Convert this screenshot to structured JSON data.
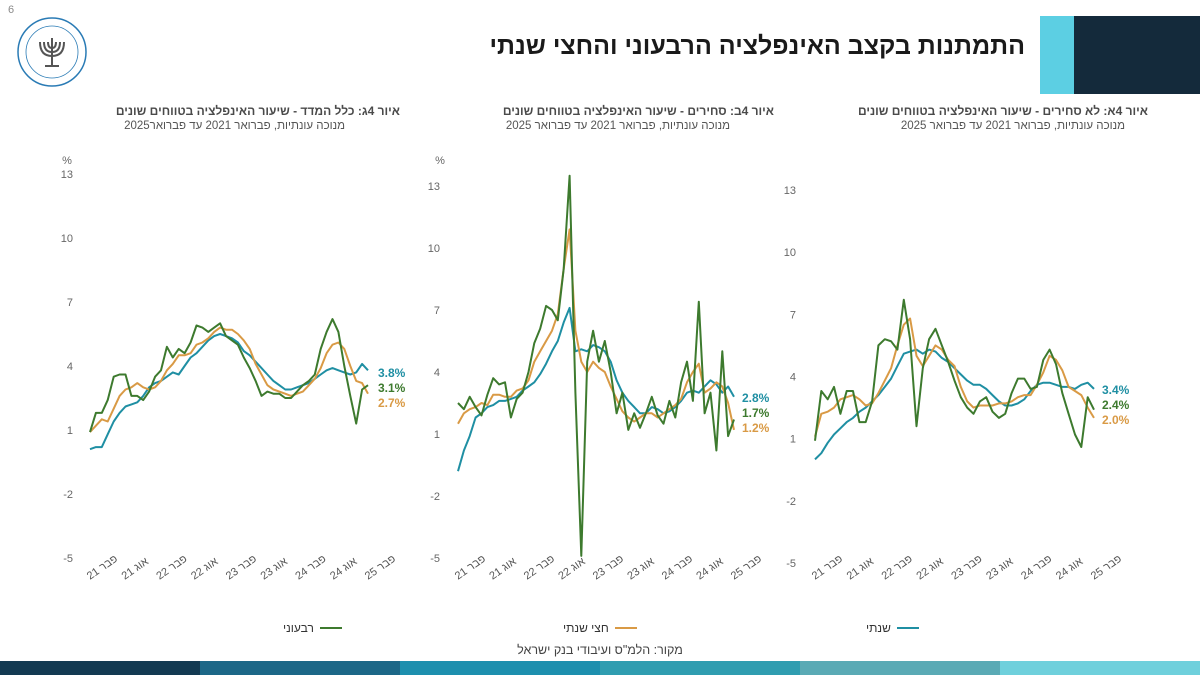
{
  "page_number": "6",
  "title": "התמתנות בקצב האינפלציה הרבעוני והחצי שנתי",
  "source": "מקור: הלמ\"ס ועיבודי בנק ישראל",
  "colors": {
    "quarterly": "#3d7a2e",
    "half_year": "#d99a45",
    "annual": "#1f8fa3",
    "header_light": "#5ccfe3",
    "header_dark": "#142a3b"
  },
  "bottom_bar_colors": [
    "#133a52",
    "#1c6787",
    "#1d8fae",
    "#2f9db0",
    "#5aaab5",
    "#6fd0dc"
  ],
  "legend": {
    "quarterly": "רבעוני",
    "half_year": "חצי שנתי",
    "annual": "שנתי"
  },
  "chart_data": [
    {
      "type": "line",
      "title": "איור 4ג: כלל המדד - שיעור האינפלציה בטווחים שונים",
      "subtitle": "מנוכה עונתיות, פברואר 2021 עד פברואר2025",
      "ylabel": "%",
      "y_ticks": [
        "13",
        "10",
        "7",
        "4",
        "1",
        "-2",
        "-5"
      ],
      "ylim": [
        -5,
        13
      ],
      "x_ticks": [
        "פבר 21",
        "אוג 21",
        "פבר 22",
        "אוג 22",
        "פבר 23",
        "אוג 23",
        "פבר 24",
        "אוג 24",
        "פבר 25"
      ],
      "end_labels": {
        "annual": "3.8%",
        "quarterly": "3.1%",
        "half_year": "2.7%"
      },
      "series": [
        {
          "key": "quarterly",
          "name": "רבעוני",
          "values": [
            0.9,
            1.8,
            1.8,
            2.4,
            3.5,
            3.6,
            3.6,
            2.6,
            2.6,
            2.4,
            2.8,
            3.5,
            3.8,
            4.9,
            4.4,
            4.8,
            4.6,
            5.1,
            5.9,
            5.8,
            5.6,
            5.8,
            6.0,
            5.4,
            5.2,
            5.0,
            4.4,
            3.9,
            3.3,
            2.6,
            2.8,
            2.7,
            2.7,
            2.5,
            2.5,
            2.8,
            3.1,
            3.3,
            3.6,
            4.8,
            5.6,
            6.2,
            5.6,
            4.0,
            2.6,
            1.3,
            2.9,
            3.1
          ]
        },
        {
          "key": "half_year",
          "name": "חצי שנתי",
          "values": [
            0.9,
            1.2,
            1.5,
            1.4,
            2.0,
            2.6,
            2.9,
            3.0,
            3.2,
            3.0,
            2.9,
            3.0,
            3.3,
            3.8,
            4.1,
            4.5,
            4.5,
            4.6,
            5.0,
            5.1,
            5.3,
            5.6,
            5.8,
            5.7,
            5.7,
            5.5,
            5.2,
            4.8,
            4.1,
            3.6,
            3.1,
            2.9,
            2.8,
            2.7,
            2.6,
            2.7,
            2.8,
            3.1,
            3.4,
            3.9,
            4.6,
            5.0,
            5.1,
            4.8,
            4.0,
            3.3,
            3.2,
            2.7
          ]
        },
        {
          "key": "annual",
          "name": "שנתי",
          "values": [
            0.1,
            0.2,
            0.2,
            0.8,
            1.4,
            1.8,
            2.1,
            2.2,
            2.3,
            2.6,
            3.0,
            3.2,
            3.3,
            3.5,
            3.7,
            3.6,
            4.0,
            4.4,
            4.6,
            4.9,
            5.2,
            5.4,
            5.5,
            5.4,
            5.3,
            5.1,
            4.7,
            4.5,
            4.2,
            3.9,
            3.6,
            3.3,
            3.1,
            2.9,
            2.9,
            3.0,
            3.1,
            3.2,
            3.4,
            3.6,
            3.8,
            3.9,
            3.8,
            3.7,
            3.6,
            3.7,
            4.1,
            3.8
          ]
        }
      ]
    },
    {
      "type": "line",
      "title": "איור 4ב: סחירים - שיעור האינפלציה בטווחים שונים",
      "subtitle": "מנוכה עונתיות, פברואר 2021 עד פברואר 2025",
      "ylabel": "%",
      "y_ticks": [
        "13",
        "10",
        "7",
        "4",
        "1",
        "-2",
        "-5"
      ],
      "ylim": [
        -5,
        13
      ],
      "x_ticks": [
        "פבר 21",
        "אוג 21",
        "פבר 22",
        "אוג 22",
        "פבר 23",
        "אוג 23",
        "פבר 24",
        "אוג 24",
        "פבר 25"
      ],
      "end_labels": {
        "annual": "2.8%",
        "quarterly": "1.7%",
        "half_year": "1.2%"
      },
      "series": [
        {
          "key": "quarterly",
          "name": "רבעוני",
          "values": [
            2.5,
            2.2,
            2.8,
            2.3,
            1.9,
            2.9,
            3.7,
            3.4,
            3.5,
            1.8,
            2.7,
            3.0,
            4.0,
            5.4,
            6.1,
            7.2,
            7.0,
            6.5,
            9.0,
            13.5,
            3.0,
            -4.9,
            4.5,
            6.0,
            4.5,
            5.5,
            4.0,
            2.0,
            3.0,
            1.2,
            2.0,
            1.3,
            2.0,
            2.8,
            1.9,
            1.5,
            2.6,
            1.8,
            3.5,
            4.5,
            2.6,
            7.4,
            2.0,
            3.0,
            0.2,
            5.0,
            0.9,
            1.7
          ]
        },
        {
          "key": "half_year",
          "name": "חצי שנתי",
          "values": [
            1.5,
            2.0,
            2.2,
            2.3,
            2.5,
            2.4,
            2.9,
            2.9,
            2.8,
            2.8,
            3.1,
            3.2,
            3.6,
            4.5,
            5.0,
            5.5,
            6.0,
            6.8,
            9.0,
            10.9,
            6.0,
            4.5,
            4.0,
            4.5,
            4.2,
            4.0,
            3.3,
            2.7,
            2.1,
            1.8,
            1.6,
            1.8,
            2.0,
            2.0,
            1.8,
            2.0,
            2.2,
            2.4,
            2.7,
            3.5,
            4.0,
            4.4,
            3.0,
            3.2,
            3.5,
            3.3,
            2.5,
            1.2
          ]
        },
        {
          "key": "annual",
          "name": "שנתי",
          "values": [
            -0.8,
            0.2,
            0.9,
            1.8,
            2.0,
            2.3,
            2.4,
            2.6,
            2.6,
            2.7,
            2.8,
            3.1,
            3.3,
            3.5,
            3.9,
            4.4,
            5.0,
            5.5,
            6.4,
            7.1,
            5.0,
            5.1,
            5.0,
            5.3,
            5.2,
            5.0,
            4.5,
            3.6,
            3.0,
            2.6,
            2.3,
            2.0,
            2.0,
            2.3,
            2.2,
            2.0,
            2.1,
            2.3,
            2.6,
            3.0,
            3.1,
            3.0,
            3.3,
            3.6,
            3.4,
            3.0,
            3.3,
            2.8
          ]
        }
      ]
    },
    {
      "type": "line",
      "title": "איור 4א: לא סחירים - שיעור האינפלציה בטווחים שונים",
      "subtitle": "מנוכה עונתיות, פברואר 2021 עד פברואר 2025",
      "ylabel": "",
      "y_ticks": [
        "13",
        "10",
        "7",
        "4",
        "1",
        "-2",
        "-5"
      ],
      "ylim": [
        -5,
        13
      ],
      "x_ticks": [
        "פבר 21",
        "אוג 21",
        "פבר 22",
        "אוג 22",
        "פבר 23",
        "אוג 23",
        "פבר 24",
        "אוג 24",
        "פבר 25"
      ],
      "end_labels": {
        "annual": "3.4%",
        "quarterly": "2.4%",
        "half_year": "2.0%"
      },
      "series": [
        {
          "key": "quarterly",
          "name": "רבעוני",
          "values": [
            0.9,
            3.3,
            2.9,
            3.5,
            2.2,
            3.3,
            3.3,
            1.8,
            1.8,
            2.8,
            5.5,
            5.8,
            5.7,
            5.3,
            7.7,
            5.8,
            1.6,
            4.4,
            5.8,
            6.3,
            5.5,
            4.7,
            3.8,
            3.0,
            2.5,
            2.2,
            2.8,
            3.0,
            2.3,
            2.0,
            2.2,
            3.2,
            3.9,
            3.9,
            3.4,
            3.5,
            4.8,
            5.3,
            4.6,
            3.2,
            2.2,
            1.2,
            0.6,
            3.0,
            2.4
          ]
        },
        {
          "key": "half_year",
          "name": "חצי שנתי",
          "values": [
            1.1,
            2.2,
            2.3,
            2.5,
            2.9,
            3.0,
            3.1,
            2.9,
            2.6,
            2.7,
            3.2,
            3.8,
            4.4,
            5.5,
            6.5,
            6.8,
            5.0,
            4.5,
            5.0,
            5.5,
            5.3,
            4.8,
            4.5,
            3.5,
            2.8,
            2.5,
            2.6,
            2.6,
            2.6,
            2.7,
            2.7,
            2.8,
            3.0,
            3.1,
            3.1,
            3.6,
            4.2,
            5.0,
            4.8,
            4.3,
            3.5,
            3.3,
            3.1,
            2.5,
            2.0
          ]
        },
        {
          "key": "annual",
          "name": "שנתי",
          "values": [
            0.0,
            0.3,
            0.8,
            1.2,
            1.5,
            1.8,
            2.0,
            2.3,
            2.5,
            2.8,
            3.1,
            3.5,
            3.9,
            4.5,
            5.1,
            5.2,
            5.3,
            5.1,
            5.3,
            5.2,
            4.9,
            4.7,
            4.4,
            4.1,
            3.8,
            3.6,
            3.6,
            3.4,
            3.1,
            2.8,
            2.6,
            2.6,
            2.7,
            2.9,
            3.3,
            3.6,
            3.7,
            3.7,
            3.6,
            3.5,
            3.5,
            3.4,
            3.6,
            3.7,
            3.4
          ]
        }
      ]
    }
  ]
}
